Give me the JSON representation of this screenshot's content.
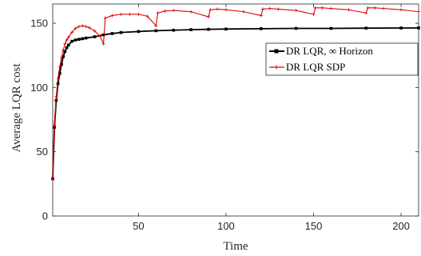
{
  "chart_data": {
    "type": "line",
    "title": "",
    "xlabel": "Time",
    "ylabel": "Average LQR cost",
    "xlim": [
      1,
      210
    ],
    "ylim": [
      0,
      165
    ],
    "xticks": [
      50,
      100,
      150,
      200
    ],
    "yticks": [
      0,
      50,
      100,
      150
    ],
    "grid": false,
    "legend_position": "right",
    "series": [
      {
        "name": "DR LQR, ∞ Horizon",
        "color": "#000000",
        "marker": "square",
        "x": [
          1,
          2,
          3,
          4,
          5,
          6,
          7,
          8,
          9,
          10,
          12,
          14,
          16,
          18,
          20,
          25,
          30,
          35,
          40,
          50,
          60,
          70,
          80,
          90,
          100,
          120,
          140,
          160,
          180,
          200,
          210
        ],
        "values": [
          29,
          69,
          90,
          103,
          111,
          118,
          124,
          128,
          131,
          133,
          136,
          137,
          137.5,
          138,
          138.5,
          139.5,
          141,
          142,
          142.8,
          143.6,
          144.2,
          144.6,
          145,
          145.3,
          145.5,
          145.8,
          146,
          146,
          146.2,
          146.3,
          146.4
        ]
      },
      {
        "name": "DR LQR SDP",
        "color": "#e00000",
        "marker": "plus",
        "x": [
          1,
          2,
          3,
          4,
          5,
          6,
          7,
          8,
          9,
          10,
          12,
          14,
          16,
          18,
          20,
          22,
          25,
          28,
          30,
          31,
          35,
          40,
          45,
          50,
          55,
          60,
          61,
          65,
          70,
          80,
          90,
          91,
          95,
          100,
          110,
          120,
          121,
          125,
          130,
          140,
          150,
          151,
          155,
          160,
          170,
          180,
          181,
          185,
          190,
          200,
          210
        ],
        "values": [
          29,
          71,
          93,
          107,
          116,
          123,
          129,
          134,
          137,
          139,
          143,
          146,
          147.5,
          148,
          147.5,
          146.5,
          144,
          140,
          134,
          154,
          156,
          157,
          157,
          157,
          155.5,
          148,
          158,
          159.5,
          160,
          159,
          155,
          160.5,
          161,
          160.5,
          159,
          156,
          161,
          161.5,
          161,
          160,
          157,
          162,
          162,
          161.5,
          160.5,
          158,
          162,
          162,
          161.5,
          160.5,
          159
        ]
      }
    ]
  }
}
